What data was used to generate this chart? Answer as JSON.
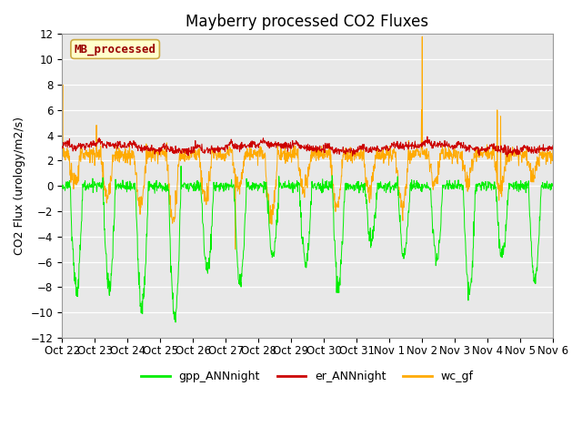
{
  "title": "Mayberry processed CO2 Fluxes",
  "ylabel": "CO2 Flux (urology/m2/s)",
  "ylim": [
    -12,
    12
  ],
  "yticks": [
    -12,
    -10,
    -8,
    -6,
    -4,
    -2,
    0,
    2,
    4,
    6,
    8,
    10,
    12
  ],
  "legend_label": "MB_processed",
  "series": {
    "gpp_ANNnight": {
      "color": "#00ee00"
    },
    "er_ANNnight": {
      "color": "#cc0000"
    },
    "wc_gf": {
      "color": "#ffaa00"
    }
  },
  "xtick_labels": [
    "Oct 22",
    "Oct 23",
    "Oct 24",
    "Oct 25",
    "Oct 26",
    "Oct 27",
    "Oct 28",
    "Oct 29",
    "Oct 30",
    "Oct 31",
    "Nov 1",
    "Nov 2",
    "Nov 3",
    "Nov 4",
    "Nov 5",
    "Nov 6"
  ],
  "n_points": 1440,
  "background_color": "#e8e8e8",
  "fig_background": "#ffffff",
  "title_fontsize": 12,
  "axis_fontsize": 9,
  "tick_fontsize": 8.5
}
